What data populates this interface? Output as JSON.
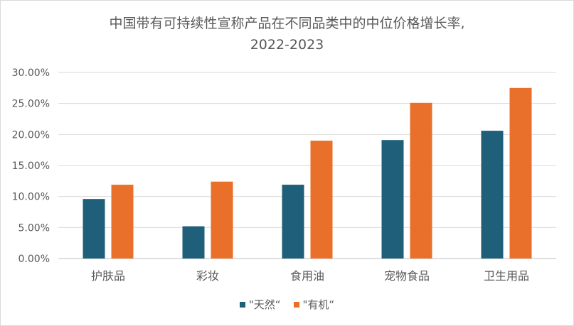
{
  "chart_data": {
    "type": "bar",
    "title_line1": "中国带有可持续性宣称产品在不同品类中的中位价格增长率,",
    "title_line2": "2022-2023",
    "categories": [
      "护肤品",
      "彩妆",
      "食用油",
      "宠物食品",
      "卫生用品"
    ],
    "series": [
      {
        "name": "\"天然“",
        "color": "#1f5f7a",
        "values": [
          9.6,
          5.2,
          11.9,
          19.1,
          20.6
        ]
      },
      {
        "name": "\"有机“",
        "color": "#e8702a",
        "values": [
          11.9,
          12.4,
          19.0,
          25.1,
          27.5
        ]
      }
    ],
    "ylim": [
      0,
      30
    ],
    "yticks": [
      "0.00%",
      "5.00%",
      "10.00%",
      "15.00%",
      "20.00%",
      "25.00%",
      "30.00%"
    ],
    "xlabel": "",
    "ylabel": "",
    "grid": true,
    "legend_position": "bottom"
  }
}
